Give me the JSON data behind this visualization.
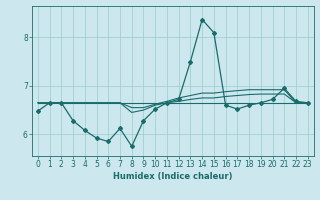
{
  "xlabel": "Humidex (Indice chaleur)",
  "bg_color": "#cce8ee",
  "grid_color": "#99cccc",
  "line_color": "#1a6b6b",
  "xlim": [
    -0.5,
    23.5
  ],
  "ylim": [
    5.55,
    8.65
  ],
  "xticks": [
    0,
    1,
    2,
    3,
    4,
    5,
    6,
    7,
    8,
    9,
    10,
    11,
    12,
    13,
    14,
    15,
    16,
    17,
    18,
    19,
    20,
    21,
    22,
    23
  ],
  "yticks": [
    6,
    7,
    8
  ],
  "lines": [
    {
      "x": [
        0,
        1,
        2,
        3,
        4,
        5,
        6,
        7,
        8,
        9,
        10,
        11,
        12,
        13,
        14,
        15,
        16,
        17,
        18,
        19,
        20,
        21,
        22,
        23
      ],
      "y": [
        6.48,
        6.65,
        6.65,
        6.28,
        6.08,
        5.92,
        5.85,
        6.12,
        5.75,
        6.28,
        6.52,
        6.65,
        6.72,
        7.5,
        8.37,
        8.1,
        6.6,
        6.52,
        6.6,
        6.65,
        6.72,
        6.95,
        6.68,
        6.65
      ],
      "marker": "D",
      "markersize": 2.0,
      "lw": 0.9
    },
    {
      "x": [
        0,
        1,
        2,
        3,
        4,
        5,
        6,
        7,
        8,
        9,
        10,
        11,
        12,
        13,
        14,
        15,
        16,
        17,
        18,
        19,
        20,
        21,
        22,
        23
      ],
      "y": [
        6.65,
        6.65,
        6.65,
        6.65,
        6.65,
        6.65,
        6.65,
        6.65,
        6.65,
        6.65,
        6.65,
        6.65,
        6.65,
        6.65,
        6.65,
        6.65,
        6.65,
        6.65,
        6.65,
        6.65,
        6.65,
        6.65,
        6.65,
        6.65
      ],
      "marker": null,
      "markersize": 0,
      "lw": 0.8
    },
    {
      "x": [
        0,
        1,
        2,
        3,
        4,
        5,
        6,
        7,
        8,
        9,
        10,
        11,
        12,
        13,
        14,
        15,
        16,
        17,
        18,
        19,
        20,
        21,
        22,
        23
      ],
      "y": [
        6.65,
        6.65,
        6.65,
        6.65,
        6.65,
        6.65,
        6.65,
        6.65,
        6.45,
        6.5,
        6.6,
        6.65,
        6.68,
        6.72,
        6.75,
        6.75,
        6.78,
        6.8,
        6.82,
        6.83,
        6.83,
        6.83,
        6.65,
        6.65
      ],
      "marker": null,
      "markersize": 0,
      "lw": 0.8
    },
    {
      "x": [
        0,
        1,
        2,
        3,
        4,
        5,
        6,
        7,
        8,
        9,
        10,
        11,
        12,
        13,
        14,
        15,
        16,
        17,
        18,
        19,
        20,
        21,
        22,
        23
      ],
      "y": [
        6.65,
        6.65,
        6.65,
        6.65,
        6.65,
        6.65,
        6.65,
        6.65,
        6.55,
        6.55,
        6.62,
        6.68,
        6.75,
        6.8,
        6.85,
        6.85,
        6.88,
        6.9,
        6.92,
        6.92,
        6.92,
        6.92,
        6.65,
        6.65
      ],
      "marker": null,
      "markersize": 0,
      "lw": 0.8
    }
  ]
}
